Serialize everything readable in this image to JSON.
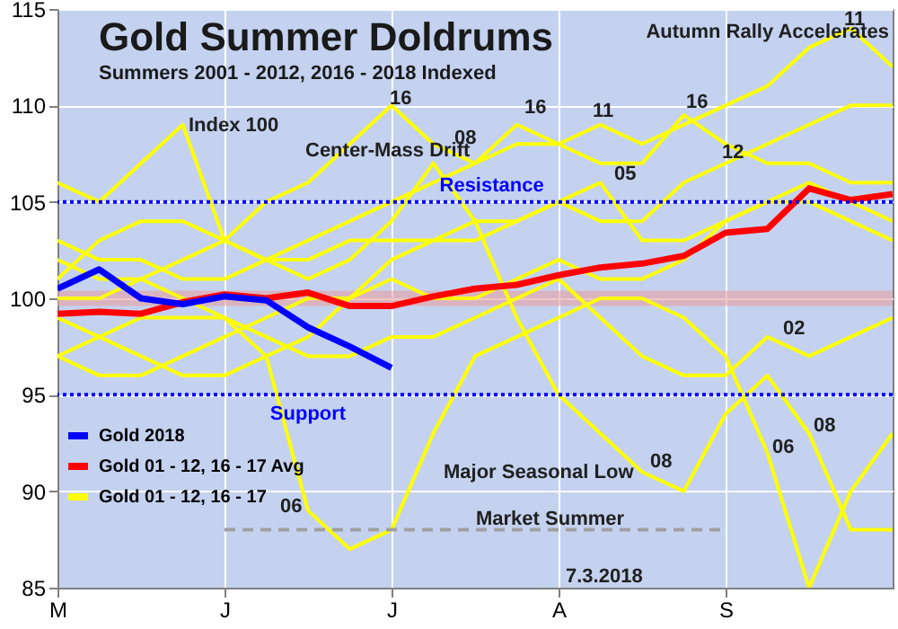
{
  "chart_data": {
    "type": "line",
    "title": "Gold Summer Doldrums",
    "subtitle": "Summers 2001 - 2012, 2016 - 2018 Indexed",
    "categories": [
      "M",
      null,
      null,
      null,
      "J",
      null,
      null,
      null,
      "J",
      null,
      null,
      null,
      "A",
      null,
      null,
      null,
      "S",
      null,
      null,
      null,
      null
    ],
    "ylim": [
      85,
      115
    ],
    "yticks": [
      85,
      90,
      95,
      100,
      105,
      110,
      115
    ],
    "grid": true,
    "legend": "bottom left",
    "series": [
      {
        "name": "Gold 01 - 12, 16 - 17",
        "color": "#ffff00",
        "values": [
          101,
          103,
          104,
          104,
          103,
          105,
          106,
          108,
          110,
          108,
          107,
          109,
          108,
          107,
          107,
          109.5,
          108,
          107,
          107,
          106,
          106
        ]
      },
      {
        "color": "#ffff00",
        "values": [
          103,
          102,
          102,
          101,
          101,
          102,
          103,
          104,
          105,
          106,
          107,
          108,
          108,
          109,
          108,
          109,
          110,
          111,
          113,
          114,
          112
        ]
      },
      {
        "color": "#ffff00",
        "values": [
          106,
          105,
          107,
          109,
          103,
          102,
          101,
          102,
          104,
          107,
          104,
          99,
          95,
          93,
          91,
          90,
          94,
          96,
          93,
          88,
          88
        ]
      },
      {
        "color": "#ffff00",
        "values": [
          97,
          98,
          99,
          99,
          99,
          97,
          89,
          87,
          88,
          93,
          97,
          98,
          99,
          100,
          100,
          99,
          97,
          92,
          85,
          90,
          93
        ]
      },
      {
        "color": "#ffff00",
        "values": [
          100,
          100,
          101,
          102,
          103,
          102,
          102,
          103,
          103,
          103,
          104,
          104,
          105,
          106,
          103,
          103,
          104,
          105,
          106,
          105,
          104
        ]
      },
      {
        "color": "#ffff00",
        "values": [
          99,
          98,
          97,
          96,
          96,
          97,
          98,
          100,
          102,
          103,
          103,
          104,
          105,
          104,
          104,
          106,
          107,
          108,
          109,
          110,
          110
        ]
      },
      {
        "color": "#ffff00",
        "values": [
          102,
          101,
          101,
          100,
          99,
          98,
          97,
          97,
          98,
          98,
          99,
          100,
          101,
          99,
          97,
          96,
          96,
          98,
          97,
          98,
          99
        ]
      },
      {
        "color": "#ffff00",
        "values": [
          97,
          96,
          96,
          97,
          98,
          99,
          100,
          100,
          101,
          100,
          100,
          101,
          102,
          101,
          101,
          102,
          104,
          105,
          105,
          104,
          103
        ]
      },
      {
        "color": "#a0a0a0",
        "line_style": "dashed",
        "values": [
          null,
          null,
          null,
          null,
          88,
          88,
          88,
          88,
          88,
          88,
          88,
          88,
          88,
          88,
          88,
          88,
          88,
          null,
          null,
          null,
          null
        ]
      },
      {
        "name": "Gold 01 - 12, 16 - 17 Avg",
        "color": "#ff0000",
        "values": [
          99.2,
          99.3,
          99.2,
          99.8,
          100.2,
          100,
          100.3,
          99.6,
          99.6,
          100.1,
          100.5,
          100.7,
          101.2,
          101.6,
          101.8,
          102.2,
          103.4,
          103.6,
          105.7,
          105.1,
          105.4
        ]
      },
      {
        "name": "Gold 2018",
        "color": "#0000ff",
        "values": [
          100.5,
          101.5,
          100,
          99.7,
          100.1,
          99.9,
          98.5,
          97.5,
          96.4,
          null,
          null,
          null,
          null,
          null,
          null,
          null,
          null,
          null,
          null,
          null,
          null
        ]
      }
    ],
    "ref_lines": [
      {
        "axis": "y",
        "value": 105,
        "label": "Resistance",
        "color": "#0000ff",
        "line_style": "dotted"
      },
      {
        "axis": "y",
        "value": 95,
        "label": "Support",
        "color": "#0000ff",
        "line_style": "dotted"
      }
    ],
    "bands": [
      {
        "axis": "y",
        "from": 99.6,
        "to": 100.4,
        "color": "#e8a0a0"
      }
    ],
    "annotations": [
      "Index 100",
      "Center-Mass Drift",
      "Autumn Rally Accelerates",
      "Major Seasonal Low",
      "Market Summer",
      "7.3.2018",
      "16",
      "08",
      "16",
      "11",
      "16",
      "11",
      "05",
      "12",
      "02",
      "06",
      "08",
      "08",
      "06"
    ]
  }
}
